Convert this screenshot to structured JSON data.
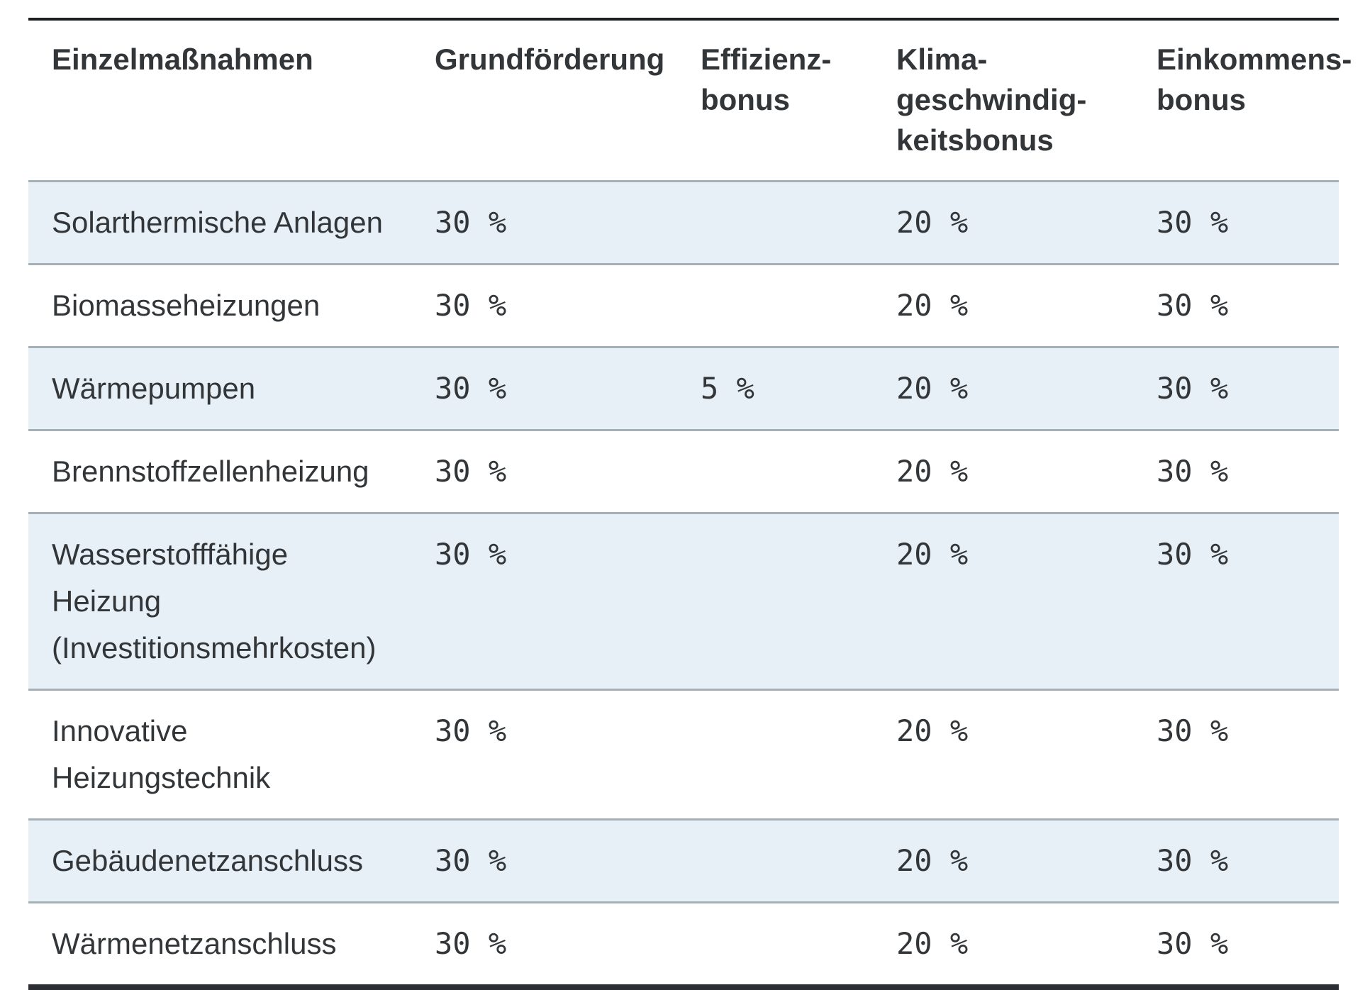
{
  "table": {
    "columns": [
      {
        "label": "Einzelmaßnahmen"
      },
      {
        "label": "Grundförderung"
      },
      {
        "label": "Effizienz-\nbonus"
      },
      {
        "label": "Klima-\ngeschwindig-\nkeitsbonus"
      },
      {
        "label": "Einkommens-\nbonus"
      }
    ],
    "rows": [
      {
        "name": "Solarthermische Anlagen",
        "values": [
          "30 %",
          "",
          "20 %",
          "30 %"
        ]
      },
      {
        "name": "Biomasseheizungen",
        "values": [
          "30 %",
          "",
          "20 %",
          "30 %"
        ]
      },
      {
        "name": "Wärmepumpen",
        "values": [
          "30 %",
          "5 %",
          "20 %",
          "30 %"
        ]
      },
      {
        "name": "Brennstoffzellenheizung",
        "values": [
          "30 %",
          "",
          "20 %",
          "30 %"
        ]
      },
      {
        "name": "Wasserstofffähige Heizung\n(Investitionsmehrkosten)",
        "values": [
          "30 %",
          "",
          "20 %",
          "30 %"
        ]
      },
      {
        "name": "Innovative Heizungstechnik",
        "values": [
          "30 %",
          "",
          "20 %",
          "30 %"
        ]
      },
      {
        "name": "Gebäudenetzanschluss",
        "values": [
          "30 %",
          "",
          "20 %",
          "30 %"
        ]
      },
      {
        "name": "Wärmenetzanschluss",
        "values": [
          "30 %",
          "",
          "20 %",
          "30 %"
        ]
      }
    ]
  },
  "colors": {
    "row_highlight": "#e7f0f7",
    "separator": "#a5b1b9",
    "top_rule": "#1d2023",
    "bottom_rule": "#2b2e33",
    "text": "#333638"
  }
}
